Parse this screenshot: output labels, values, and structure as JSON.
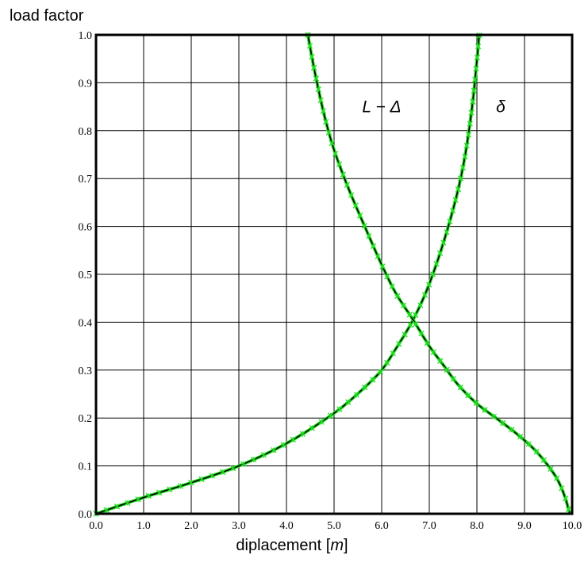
{
  "chart_data": {
    "type": "line",
    "xlabel": "diplacement [m]",
    "ylabel": "load factor",
    "xlim": [
      0,
      10
    ],
    "ylim": [
      0,
      1
    ],
    "grid": true,
    "x_ticks": [
      "0.0",
      "1.0",
      "2.0",
      "3.0",
      "4.0",
      "5.0",
      "6.0",
      "7.0",
      "8.0",
      "9.0",
      "10.0"
    ],
    "y_ticks": [
      "0.0",
      "0.1",
      "0.2",
      "0.3",
      "0.4",
      "0.5",
      "0.6",
      "0.7",
      "0.8",
      "0.9",
      "1.0"
    ],
    "annotations": [
      {
        "text": "L − Δ",
        "x": 6.0,
        "y": 0.85
      },
      {
        "text": "δ",
        "x": 8.5,
        "y": 0.85
      }
    ],
    "series": [
      {
        "label": "δ",
        "x": [
          0.0,
          1.0,
          2.0,
          3.0,
          4.0,
          5.0,
          5.6,
          6.0,
          6.3,
          6.66,
          7.0,
          7.4,
          7.7,
          7.9,
          8.05
        ],
        "y": [
          0.0,
          0.034,
          0.065,
          0.1,
          0.147,
          0.21,
          0.26,
          0.3,
          0.345,
          0.405,
          0.48,
          0.6,
          0.72,
          0.85,
          1.0
        ],
        "color_line": "#000000",
        "color_markers": "#22dd22"
      },
      {
        "label": "L − Δ",
        "x": [
          4.45,
          4.6,
          4.8,
          5.0,
          5.3,
          5.6,
          6.0,
          6.3,
          6.66,
          7.0,
          7.3,
          7.6,
          8.0,
          8.4,
          8.8,
          9.2,
          9.5,
          9.7,
          9.85,
          9.95
        ],
        "y": [
          1.0,
          0.92,
          0.83,
          0.76,
          0.68,
          0.61,
          0.52,
          0.46,
          0.405,
          0.35,
          0.31,
          0.27,
          0.23,
          0.2,
          0.17,
          0.135,
          0.1,
          0.07,
          0.035,
          0.0
        ],
        "color_line": "#000000",
        "color_markers": "#22dd22"
      }
    ]
  }
}
